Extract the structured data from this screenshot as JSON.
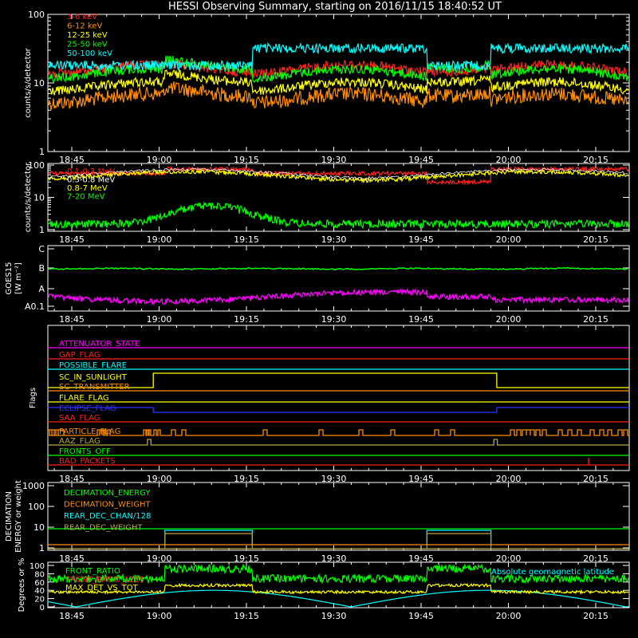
{
  "title": "HESSI Observing Summary, starting on 2016/11/15 18:40:52 UT",
  "time_ticks": [
    "18:45",
    "19:00",
    "19:15",
    "19:30",
    "19:45",
    "20:00",
    "20:15"
  ],
  "colors": {
    "red": "#ff2020",
    "orange": "#ff8c00",
    "yellow": "#ffff00",
    "green": "#00ff00",
    "cyan": "#00ffff",
    "magenta": "#ff00ff",
    "blue": "#3030ff",
    "white": "#ffffff"
  },
  "chart_data": [
    {
      "type": "line",
      "panel": "count rates low energy",
      "ylabel": "counts/s/detector",
      "yscale": "log",
      "ylim": [
        1,
        100
      ],
      "yticks": [
        "1",
        "10",
        "100"
      ],
      "x_range": [
        "18:40:52",
        "20:22:00"
      ],
      "series": [
        {
          "name": "3-6 keV",
          "color": "red",
          "approx_level": 18
        },
        {
          "name": "6-12 keV",
          "color": "orange",
          "approx_level": 8
        },
        {
          "name": "12-25 keV",
          "color": "yellow",
          "approx_level": 12
        },
        {
          "name": "25-50 keV",
          "color": "green",
          "approx_level": 18
        },
        {
          "name": "50-100 keV",
          "color": "cyan",
          "approx_level": 30
        }
      ]
    },
    {
      "type": "line",
      "panel": "count rates high energy",
      "ylabel": "counts/s/detector",
      "yscale": "log",
      "ylim": [
        1,
        100
      ],
      "yticks": [
        "1",
        "10",
        "100"
      ],
      "series": [
        {
          "name": "0.1-0.3 MeV",
          "color": "red",
          "approx_level": 60
        },
        {
          "name": "0.3-0.8 MeV",
          "color": "white",
          "approx_level": 45
        },
        {
          "name": "0.8-7 MeV",
          "color": "yellow",
          "approx_level": 45
        },
        {
          "name": "7-20 MeV",
          "color": "green",
          "approx_level": 2
        }
      ]
    },
    {
      "type": "line",
      "panel": "GOES",
      "ylabel": "GOES15",
      "ylabel2": "[W m⁻²]",
      "yticks": [
        "A0.1",
        "A",
        "B",
        "C"
      ],
      "series": [
        {
          "name": "GOES long",
          "color": "green",
          "approx_level": "B"
        },
        {
          "name": "GOES short",
          "color": "magenta",
          "approx_level": "A"
        }
      ]
    },
    {
      "type": "line",
      "panel": "Flags",
      "ylabel": "Flags",
      "series": [
        {
          "name": "ATTENUATOR_STATE",
          "color": "magenta"
        },
        {
          "name": "GAP_FLAG",
          "color": "red"
        },
        {
          "name": "POSSIBLE_FLARE",
          "color": "cyan"
        },
        {
          "name": "SC_IN_SUNLIGHT",
          "color": "yellow"
        },
        {
          "name": "SC_TRANSMITTER",
          "color": "orange"
        },
        {
          "name": "FLARE_FLAG",
          "color": "yellow"
        },
        {
          "name": "ECLIPSE_FLAG",
          "color": "blue"
        },
        {
          "name": "SAA_FLAG",
          "color": "red"
        },
        {
          "name": "PARTICLE_FLAG",
          "color": "orange"
        },
        {
          "name": "AAZ_FLAG",
          "color": "olive"
        },
        {
          "name": "FRONTS_OFF",
          "color": "green"
        },
        {
          "name": "BAD_PACKETS",
          "color": "red"
        }
      ]
    },
    {
      "type": "line",
      "panel": "Decimation",
      "ylabel": "DECIMATION",
      "ylabel2": "ENERGY or weight",
      "yscale": "log",
      "ylim": [
        1,
        1000
      ],
      "yticks": [
        "1",
        "10",
        "100",
        "1000"
      ],
      "series": [
        {
          "name": "DECIMATION_ENERGY",
          "color": "green"
        },
        {
          "name": "DECIMATION_WEIGHT",
          "color": "orange"
        },
        {
          "name": "REAR_DEC_CHAN/128",
          "color": "cyan"
        },
        {
          "name": "REAR_DEC_WEIGHT",
          "color": "olive"
        }
      ]
    },
    {
      "type": "line",
      "panel": "Ratios",
      "ylabel": "Degrees or %",
      "ylim": [
        0,
        100
      ],
      "yticks": [
        "0",
        "20",
        "40",
        "60",
        "80",
        "100"
      ],
      "annotation": "Absolute geomagnetic latitude",
      "series": [
        {
          "name": "FRONT_RATIO",
          "color": "green"
        },
        {
          "name": "FRONT_RATIO_1225",
          "color": "red"
        },
        {
          "name": "MAX_DET_VS_TOT",
          "color": "yellow"
        },
        {
          "name": "Absolute geomagnetic latitude",
          "color": "cyan"
        }
      ]
    }
  ]
}
